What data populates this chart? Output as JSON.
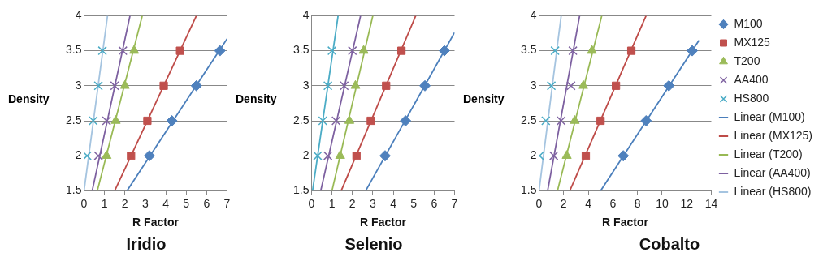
{
  "chart_data": [
    {
      "type": "scatter",
      "title": "Iridio",
      "xlabel": "R Factor",
      "ylabel": "Density",
      "xlim": [
        0,
        7
      ],
      "xticks": [
        0,
        1,
        2,
        3,
        4,
        5,
        6,
        7
      ],
      "ylim": [
        1.5,
        4
      ],
      "yticks": [
        1.5,
        2,
        2.5,
        3,
        3.5,
        4
      ],
      "grid": "y",
      "legend": false,
      "series": [
        {
          "color": "#4f81bd",
          "marker": "diamond",
          "x": [
            3.2,
            4.3,
            5.5,
            6.65
          ],
          "values": [
            2,
            2.5,
            3,
            3.5
          ]
        },
        {
          "color": "#c0504d",
          "marker": "square",
          "x": [
            2.3,
            3.1,
            3.9,
            4.7
          ],
          "values": [
            2,
            2.5,
            3,
            3.5
          ]
        },
        {
          "color": "#9bbb59",
          "marker": "triangle",
          "x": [
            1.1,
            1.55,
            2.0,
            2.45
          ],
          "values": [
            2,
            2.5,
            3,
            3.5
          ]
        },
        {
          "color": "#8064a2",
          "marker": "cross",
          "x": [
            0.7,
            1.1,
            1.5,
            1.9
          ],
          "values": [
            2,
            2.5,
            3,
            3.5
          ]
        },
        {
          "color": "#4bacc6",
          "marker": "cross",
          "x": [
            0.15,
            0.45,
            0.7,
            0.9
          ],
          "values": [
            2,
            2.5,
            3,
            3.5
          ]
        },
        {
          "type": "line",
          "color": "#4a7ebb",
          "x": [
            2.1,
            7
          ],
          "values": [
            1.5,
            3.67
          ]
        },
        {
          "type": "line",
          "color": "#be4b48",
          "x": [
            1.5,
            5.5
          ],
          "values": [
            1.5,
            4
          ]
        },
        {
          "type": "line",
          "color": "#98b954",
          "x": [
            0.65,
            2.85
          ],
          "values": [
            1.5,
            4
          ]
        },
        {
          "type": "line",
          "color": "#7d60a0",
          "x": [
            0.4,
            2.25
          ],
          "values": [
            1.5,
            4
          ]
        },
        {
          "type": "line",
          "color": "#a5c4e0",
          "x": [
            0,
            1.15
          ],
          "values": [
            1.5,
            4
          ]
        }
      ]
    },
    {
      "type": "scatter",
      "title": "Selenio",
      "xlabel": "R Factor",
      "ylabel": "Density",
      "xlim": [
        0,
        7
      ],
      "xticks": [
        0,
        1,
        2,
        3,
        4,
        5,
        6,
        7
      ],
      "ylim": [
        1.5,
        4
      ],
      "yticks": [
        1.5,
        2,
        2.5,
        3,
        3.5,
        4
      ],
      "grid": "y",
      "legend": false,
      "series": [
        {
          "color": "#4f81bd",
          "marker": "diamond",
          "x": [
            3.6,
            4.6,
            5.55,
            6.5
          ],
          "values": [
            2,
            2.5,
            3,
            3.5
          ]
        },
        {
          "color": "#c0504d",
          "marker": "square",
          "x": [
            2.2,
            2.9,
            3.65,
            4.4
          ],
          "values": [
            2,
            2.5,
            3,
            3.5
          ]
        },
        {
          "color": "#9bbb59",
          "marker": "triangle",
          "x": [
            1.4,
            1.85,
            2.15,
            2.55
          ],
          "values": [
            2,
            2.5,
            3,
            3.5
          ]
        },
        {
          "color": "#8064a2",
          "marker": "cross",
          "x": [
            0.8,
            1.2,
            1.6,
            2.0
          ],
          "values": [
            2,
            2.5,
            3,
            3.5
          ]
        },
        {
          "color": "#4bacc6",
          "marker": "cross",
          "x": [
            0.3,
            0.55,
            0.8,
            1.0
          ],
          "values": [
            2,
            2.5,
            3,
            3.5
          ]
        },
        {
          "type": "line",
          "color": "#4a7ebb",
          "x": [
            2.65,
            7
          ],
          "values": [
            1.5,
            3.76
          ]
        },
        {
          "type": "line",
          "color": "#be4b48",
          "x": [
            1.45,
            5.1
          ],
          "values": [
            1.5,
            4
          ]
        },
        {
          "type": "line",
          "color": "#98b954",
          "x": [
            1.0,
            3.0
          ],
          "values": [
            1.5,
            4
          ]
        },
        {
          "type": "line",
          "color": "#7d60a0",
          "x": [
            0.45,
            2.4
          ],
          "values": [
            1.5,
            4
          ]
        },
        {
          "type": "line",
          "color": "#4bacc6",
          "x": [
            0.05,
            1.3
          ],
          "values": [
            1.5,
            4
          ]
        }
      ]
    },
    {
      "type": "scatter",
      "title": "Cobalto",
      "xlabel": "R Factor",
      "ylabel": "Density",
      "xlim": [
        0,
        14
      ],
      "xticks": [
        0,
        2,
        4,
        6,
        8,
        10,
        12,
        14
      ],
      "ylim": [
        1.5,
        4
      ],
      "yticks": [
        1.5,
        2,
        2.5,
        3,
        3.5,
        4
      ],
      "grid": "y",
      "legend": "right",
      "series": [
        {
          "name": "M100",
          "color": "#4f81bd",
          "marker": "diamond",
          "x": [
            6.85,
            8.7,
            10.55,
            12.45
          ],
          "values": [
            2,
            2.5,
            3,
            3.5
          ]
        },
        {
          "name": "MX125",
          "color": "#c0504d",
          "marker": "square",
          "x": [
            3.8,
            5.0,
            6.25,
            7.5
          ],
          "values": [
            2,
            2.5,
            3,
            3.5
          ]
        },
        {
          "name": "T200",
          "color": "#9bbb59",
          "marker": "triangle",
          "x": [
            2.25,
            2.9,
            3.6,
            4.3
          ],
          "values": [
            2,
            2.5,
            3,
            3.5
          ]
        },
        {
          "name": "AA400",
          "color": "#8064a2",
          "marker": "cross",
          "x": [
            1.2,
            1.8,
            2.6,
            2.75
          ],
          "values": [
            2,
            2.5,
            3,
            3.5
          ]
        },
        {
          "name": "HS800",
          "color": "#4bacc6",
          "marker": "cross",
          "x": [
            0.05,
            0.55,
            1.0,
            1.3
          ],
          "values": [
            2,
            2.5,
            3,
            3.5
          ]
        },
        {
          "name": "Linear (M100)",
          "type": "line",
          "color": "#4a7ebb",
          "x": [
            5,
            13
          ],
          "values": [
            1.5,
            3.65
          ]
        },
        {
          "name": "Linear (MX125)",
          "type": "line",
          "color": "#be4b48",
          "x": [
            2.5,
            8.7
          ],
          "values": [
            1.5,
            4
          ]
        },
        {
          "name": "Linear (T200)",
          "type": "line",
          "color": "#98b954",
          "x": [
            1.5,
            5.1
          ],
          "values": [
            1.5,
            4
          ]
        },
        {
          "name": "Linear (AA400)",
          "type": "line",
          "color": "#7d60a0",
          "x": [
            0.7,
            3.3
          ],
          "values": [
            1.5,
            4
          ]
        },
        {
          "name": "Linear (HS800)",
          "type": "line",
          "color": "#a5c4e0",
          "x": [
            0,
            1.8
          ],
          "values": [
            1.5,
            4
          ]
        }
      ]
    }
  ]
}
